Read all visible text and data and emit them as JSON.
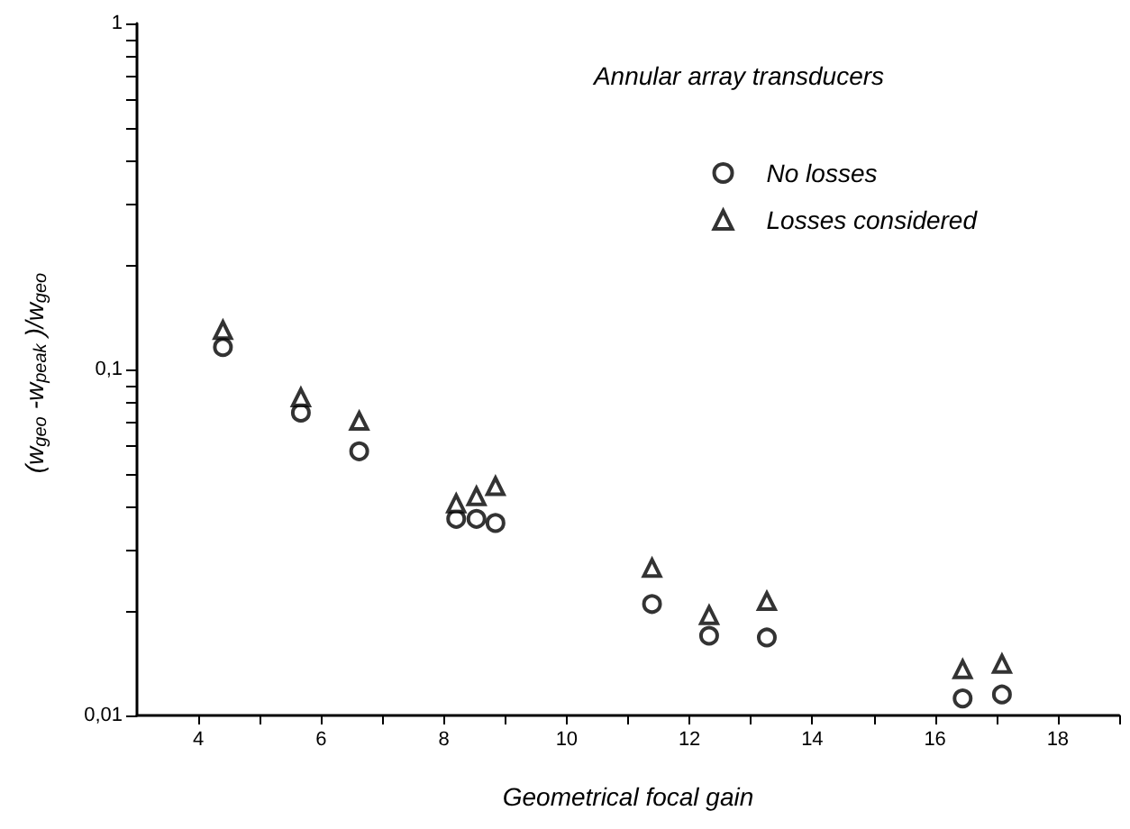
{
  "chart_data": {
    "type": "scatter",
    "title": "Annular array transducers",
    "xlabel": "Geometrical focal gain",
    "ylabel": "(w$_{geo}$-w$_{peak}$)/w$_{geo}$",
    "log": "y",
    "grid": false,
    "legend": "top right",
    "xlim": [
      3,
      19
    ],
    "xticks": [
      4,
      {
        "value": 5,
        "label": null
      },
      6,
      {
        "value": 7,
        "label": null
      },
      8,
      {
        "value": 9,
        "label": null
      },
      10,
      {
        "value": 11,
        "label": null
      },
      12,
      {
        "value": 13,
        "label": null
      },
      14,
      {
        "value": 15,
        "label": null
      },
      16,
      {
        "value": 17,
        "label": null
      },
      18,
      {
        "value": 19,
        "label": null
      }
    ],
    "ylim": [
      0.01,
      1
    ],
    "yticks": [
      {
        "value": 0.01,
        "label": "0,01"
      },
      {
        "value": 0.02,
        "label": null
      },
      {
        "value": 0.03,
        "label": null
      },
      {
        "value": 0.04,
        "label": null
      },
      {
        "value": 0.05,
        "label": null
      },
      {
        "value": 0.06,
        "label": null
      },
      {
        "value": 0.07,
        "label": null
      },
      {
        "value": 0.08,
        "label": null
      },
      {
        "value": 0.09,
        "label": null
      },
      {
        "value": 0.1,
        "label": "0,1"
      },
      {
        "value": 0.2,
        "label": null
      },
      {
        "value": 0.3,
        "label": null
      },
      {
        "value": 0.4,
        "label": null
      },
      {
        "value": 0.5,
        "label": null
      },
      {
        "value": 0.6,
        "label": null
      },
      {
        "value": 0.7,
        "label": null
      },
      {
        "value": 0.8,
        "label": null
      },
      {
        "value": 0.9,
        "label": null
      },
      {
        "value": 1,
        "label": "1"
      }
    ],
    "series": [
      {
        "name": "No losses",
        "color": "#000000",
        "marker": "circle",
        "x": [
          4.4,
          5.67,
          6.62,
          8.2,
          8.53,
          8.84,
          11.39,
          12.32,
          13.26,
          16.45,
          17.09
        ],
        "values": [
          0.116,
          0.075,
          0.058,
          0.037,
          0.037,
          0.036,
          0.021,
          0.017,
          0.0168,
          0.0112,
          0.0115
        ]
      },
      {
        "name": "Losses considered",
        "color": "#000000",
        "marker": "triangle",
        "x": [
          4.4,
          5.67,
          6.62,
          8.2,
          8.53,
          8.84,
          11.39,
          12.32,
          13.26,
          16.45,
          17.09
        ],
        "values": [
          0.13,
          0.083,
          0.071,
          0.041,
          0.043,
          0.046,
          0.0267,
          0.0195,
          0.0214,
          0.0136,
          0.0141
        ]
      }
    ]
  }
}
